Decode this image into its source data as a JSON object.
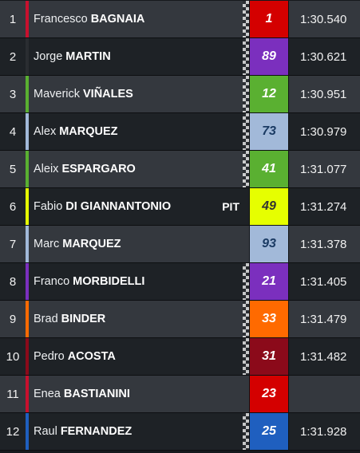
{
  "standings": {
    "rows": [
      {
        "position": "1",
        "first": "Francesco",
        "last": "BAGNAIA",
        "pit": "",
        "number": "1",
        "time": "1:30.540",
        "team_color": "#c8102e",
        "number_bg": "#d40000",
        "number_color": "#ffffff",
        "flag": true
      },
      {
        "position": "2",
        "first": "Jorge",
        "last": "MARTIN",
        "pit": "",
        "number": "89",
        "time": "1:30.621",
        "team_color": "#2a2d31",
        "number_bg": "#7b2fbe",
        "number_color": "#ffffff",
        "flag": true
      },
      {
        "position": "3",
        "first": "Maverick",
        "last": "VIÑALES",
        "pit": "",
        "number": "12",
        "time": "1:30.951",
        "team_color": "#5ab031",
        "number_bg": "#5ab031",
        "number_color": "#ffffff",
        "flag": true
      },
      {
        "position": "4",
        "first": "Alex",
        "last": "MARQUEZ",
        "pit": "",
        "number": "73",
        "time": "1:30.979",
        "team_color": "#a2b9d9",
        "number_bg": "#a2b9d9",
        "number_color": "#1a3a63",
        "flag": true
      },
      {
        "position": "5",
        "first": "Aleix",
        "last": "ESPARGARO",
        "pit": "",
        "number": "41",
        "time": "1:31.077",
        "team_color": "#5ab031",
        "number_bg": "#5ab031",
        "number_color": "#ffffff",
        "flag": true
      },
      {
        "position": "6",
        "first": "Fabio",
        "last": "DI GIANNANTONIO",
        "pit": "PIT",
        "number": "49",
        "time": "1:31.274",
        "team_color": "#e6ff00",
        "number_bg": "#e6ff00",
        "number_color": "#333333",
        "flag": false
      },
      {
        "position": "7",
        "first": "Marc",
        "last": "MARQUEZ",
        "pit": "",
        "number": "93",
        "time": "1:31.378",
        "team_color": "#a2b9d9",
        "number_bg": "#a2b9d9",
        "number_color": "#1a3a63",
        "flag": false
      },
      {
        "position": "8",
        "first": "Franco",
        "last": "MORBIDELLI",
        "pit": "",
        "number": "21",
        "time": "1:31.405",
        "team_color": "#7b2fbe",
        "number_bg": "#7b2fbe",
        "number_color": "#ffffff",
        "flag": true
      },
      {
        "position": "9",
        "first": "Brad",
        "last": "BINDER",
        "pit": "",
        "number": "33",
        "time": "1:31.479",
        "team_color": "#ff6a00",
        "number_bg": "#ff6a00",
        "number_color": "#ffffff",
        "flag": true
      },
      {
        "position": "10",
        "first": "Pedro",
        "last": "ACOSTA",
        "pit": "",
        "number": "31",
        "time": "1:31.482",
        "team_color": "#8b0a1a",
        "number_bg": "#8b0a1a",
        "number_color": "#ffffff",
        "flag": true
      },
      {
        "position": "11",
        "first": "Enea",
        "last": "BASTIANINI",
        "pit": "",
        "number": "23",
        "time": "",
        "team_color": "#c8102e",
        "number_bg": "#d40000",
        "number_color": "#ffffff",
        "flag": false
      },
      {
        "position": "12",
        "first": "Raul",
        "last": "FERNANDEZ",
        "pit": "",
        "number": "25",
        "time": "1:31.928",
        "team_color": "#1f5fbf",
        "number_bg": "#1f5fbf",
        "number_color": "#ffffff",
        "flag": true
      }
    ]
  }
}
